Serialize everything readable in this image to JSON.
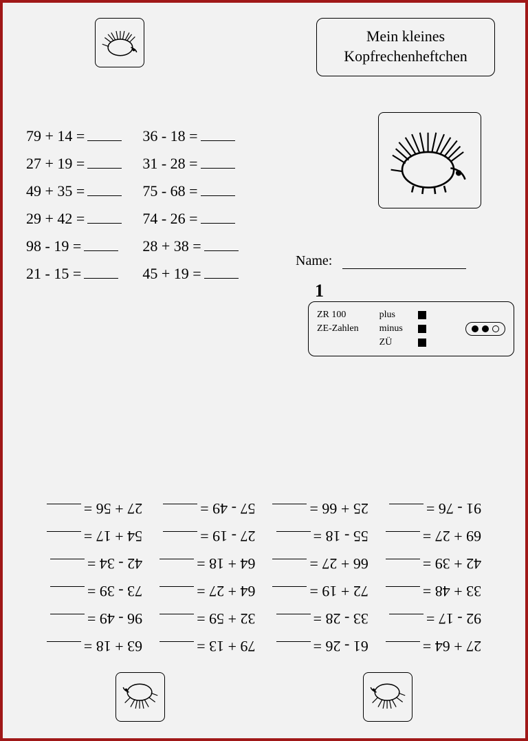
{
  "border_color": "#a01818",
  "background": "#f2f2f2",
  "title": {
    "line1": "Mein kleines",
    "line2": "Kopfrechenheftchen"
  },
  "name_label": "Name:",
  "page_number": "1",
  "info": {
    "left": [
      "ZR 100",
      "ZE-Zahlen"
    ],
    "right": [
      {
        "label": "plus",
        "filled": true
      },
      {
        "label": "minus",
        "filled": true
      },
      {
        "label": "ZÜ",
        "filled": true
      }
    ],
    "dots": [
      true,
      true,
      false
    ]
  },
  "top_problems": {
    "col1": [
      "79 + 14 =",
      "27 + 19 =",
      "49 + 35 =",
      "29 + 42 =",
      "98 - 19 =",
      "21 - 15 ="
    ],
    "col2": [
      "36 - 18 =",
      "31 - 28 =",
      "75 - 68 =",
      "74 - 26 =",
      "28 + 38 =",
      "45 + 19 ="
    ]
  },
  "bottom_problems": {
    "col1": [
      "27 + 64 =",
      "92 - 17 =",
      "33 + 48 =",
      "42 + 39 =",
      "69 + 27 =",
      "91 - 76 ="
    ],
    "col2": [
      "61 - 26 =",
      "33 - 28 =",
      "72 + 19 =",
      "66 + 27 =",
      "55 - 18 =",
      "25 + 66 ="
    ],
    "col3": [
      "79 + 13 =",
      "32 + 59 =",
      "64 + 27 =",
      "64 + 18 =",
      "27 - 19 =",
      "57 - 49 ="
    ],
    "col4": [
      "63 + 18 =",
      "96 - 49 =",
      "73 - 39 =",
      "42 - 34 =",
      "54 + 17 =",
      "27 + 56 ="
    ]
  }
}
